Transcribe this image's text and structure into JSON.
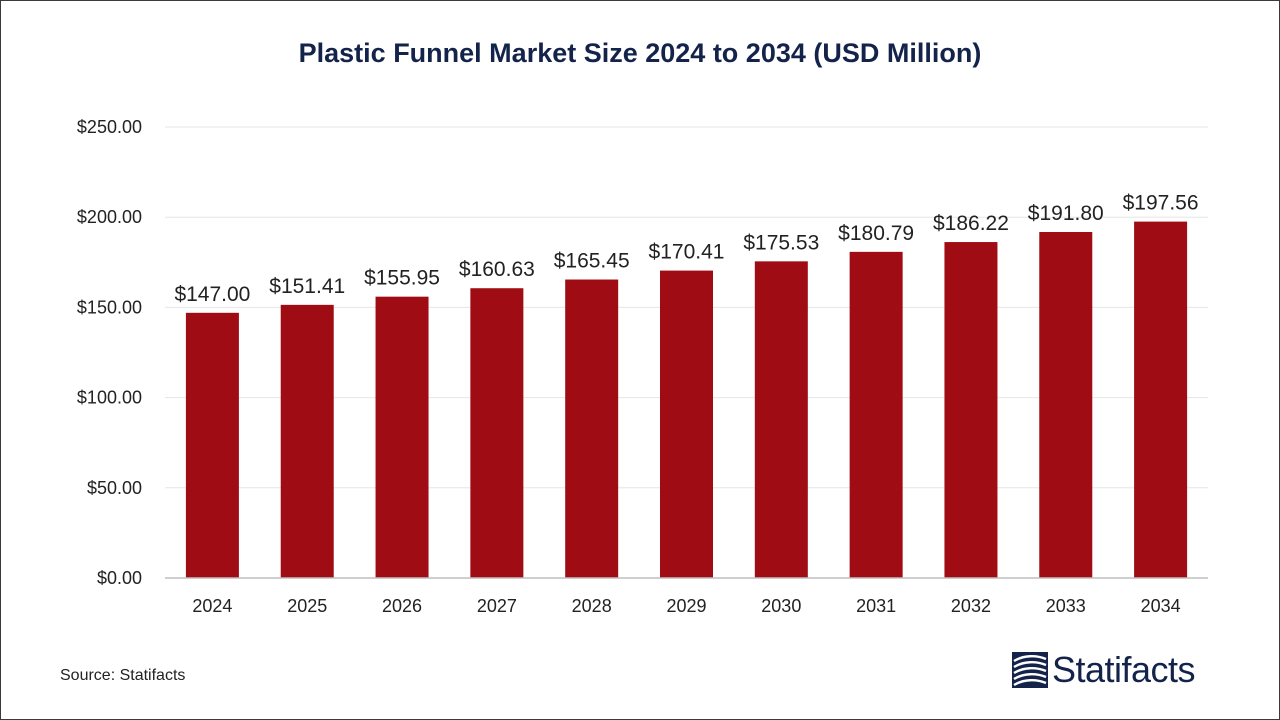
{
  "title": "Plastic Funnel Market Size 2024 to 2034 (USD Million)",
  "source": "Source: Statifacts",
  "brand": {
    "name": "Statifacts"
  },
  "colors": {
    "bar": "#a00c13",
    "title": "#13234a",
    "grid": "#e6e6e6",
    "axis": "#bfbfbf",
    "text": "#222222"
  },
  "chart_data": {
    "type": "bar",
    "title": "Plastic Funnel Market Size 2024 to 2034 (USD Million)",
    "xlabel": "",
    "ylabel": "",
    "categories": [
      "2024",
      "2025",
      "2026",
      "2027",
      "2028",
      "2029",
      "2030",
      "2031",
      "2032",
      "2033",
      "2034"
    ],
    "values": [
      147.0,
      151.41,
      155.95,
      160.63,
      165.45,
      170.41,
      175.53,
      180.79,
      186.22,
      191.8,
      197.56
    ],
    "data_labels": [
      "$147.00",
      "$151.41",
      "$155.95",
      "$160.63",
      "$165.45",
      "$170.41",
      "$175.53",
      "$180.79",
      "$186.22",
      "$191.80",
      "$197.56"
    ],
    "y_ticks": [
      0,
      50,
      100,
      150,
      200,
      250
    ],
    "y_tick_labels": [
      "$0.00",
      "$50.00",
      "$100.00",
      "$150.00",
      "$200.00",
      "$250.00"
    ],
    "ylim": [
      0,
      250
    ],
    "grid": true,
    "legend": "none"
  }
}
